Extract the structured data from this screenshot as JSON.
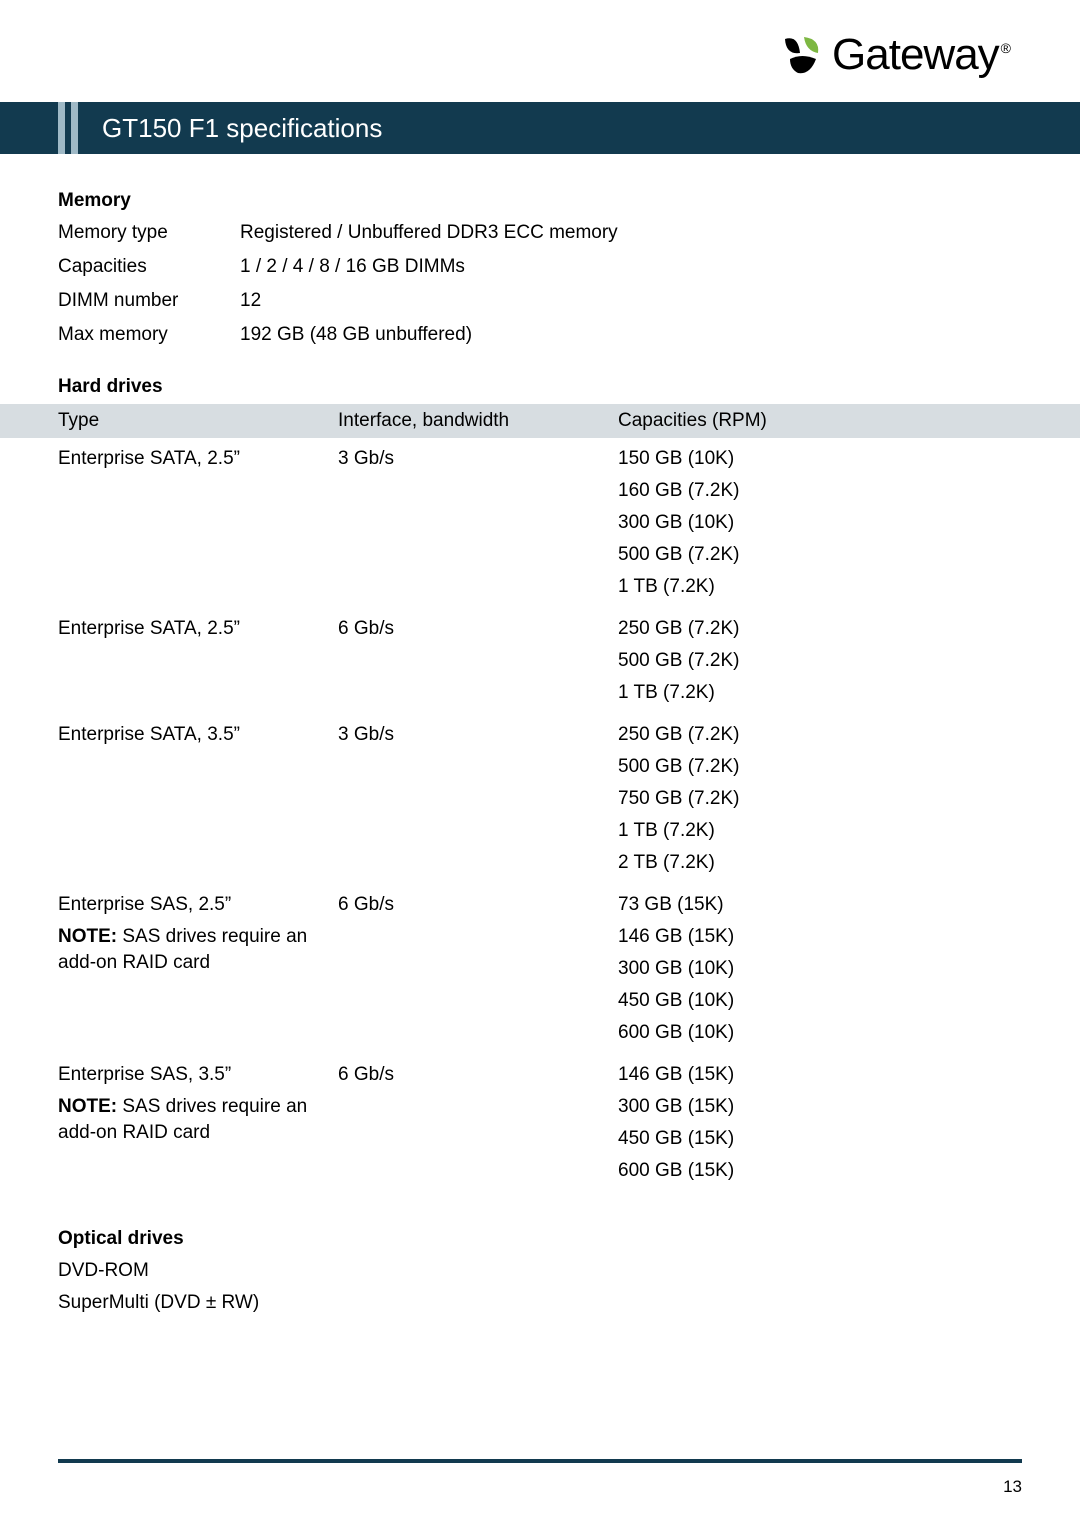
{
  "colors": {
    "titlebar_bg": "#123a4f",
    "stripe": "#9fb9c6",
    "header_row_bg": "#d7dde1",
    "text": "#000000",
    "footer_line": "#123a4f"
  },
  "logo": {
    "brand": "Gateway",
    "registered": "®",
    "mark_colors": {
      "left": "#000000",
      "top": "#7db742",
      "bottom": "#000000"
    }
  },
  "title": "GT150 F1 specifications",
  "memory": {
    "heading": "Memory",
    "rows": [
      {
        "label": "Memory type",
        "value": "Registered / Unbuffered DDR3 ECC memory"
      },
      {
        "label": "Capacities",
        "value": "1 / 2 / 4 / 8 / 16 GB DIMMs"
      },
      {
        "label": "DIMM number",
        "value": "12"
      },
      {
        "label": "Max memory",
        "value": "192 GB (48 GB unbuffered)"
      }
    ]
  },
  "hard_drives": {
    "heading": "Hard drives",
    "columns": {
      "type": "Type",
      "interface": "Interface, bandwidth",
      "capacities": "Capacities (RPM)"
    },
    "groups": [
      {
        "type": "Enterprise SATA, 2.5”",
        "note_bold": "",
        "note_rest": "",
        "interface": "3 Gb/s",
        "capacities": [
          "150 GB (10K)",
          "160 GB (7.2K)",
          "300 GB (10K)",
          "500 GB (7.2K)",
          "1 TB (7.2K)"
        ]
      },
      {
        "type": "Enterprise SATA, 2.5”",
        "note_bold": "",
        "note_rest": "",
        "interface": "6 Gb/s",
        "capacities": [
          "250 GB (7.2K)",
          "500 GB (7.2K)",
          "1 TB (7.2K)"
        ]
      },
      {
        "type": "Enterprise SATA, 3.5”",
        "note_bold": "",
        "note_rest": "",
        "interface": "3 Gb/s",
        "capacities": [
          "250 GB (7.2K)",
          "500 GB (7.2K)",
          "750 GB (7.2K)",
          "1 TB (7.2K)",
          "2 TB (7.2K)"
        ]
      },
      {
        "type": "Enterprise SAS, 2.5”",
        "note_bold": "NOTE:",
        "note_rest": " SAS drives require an add-on RAID card",
        "interface": "6 Gb/s",
        "capacities": [
          "73 GB (15K)",
          "146 GB (15K)",
          "300 GB (10K)",
          "450 GB (10K)",
          "600 GB (10K)"
        ]
      },
      {
        "type": "Enterprise SAS, 3.5”",
        "note_bold": "NOTE:",
        "note_rest": " SAS drives require an add-on RAID card",
        "interface": "6 Gb/s",
        "capacities": [
          "146 GB (15K)",
          "300 GB (15K)",
          "450 GB (15K)",
          "600 GB (15K)"
        ]
      }
    ]
  },
  "optical": {
    "heading": "Optical drives",
    "items": [
      "DVD-ROM",
      "SuperMulti (DVD ± RW)"
    ]
  },
  "page_number": "13"
}
